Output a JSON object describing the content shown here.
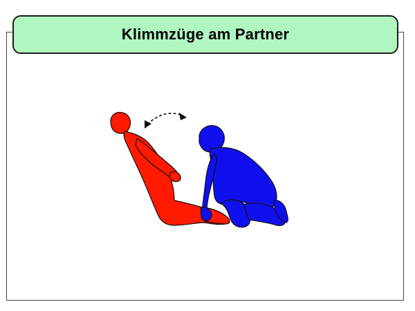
{
  "title": "Klimmzüge am Partner",
  "colors": {
    "title_background": "#b0f6c0",
    "figure_left": "#ff1a00",
    "figure_right": "#1010ee",
    "outline": "#111111"
  },
  "icons": [
    "curved-double-arrow-icon"
  ]
}
